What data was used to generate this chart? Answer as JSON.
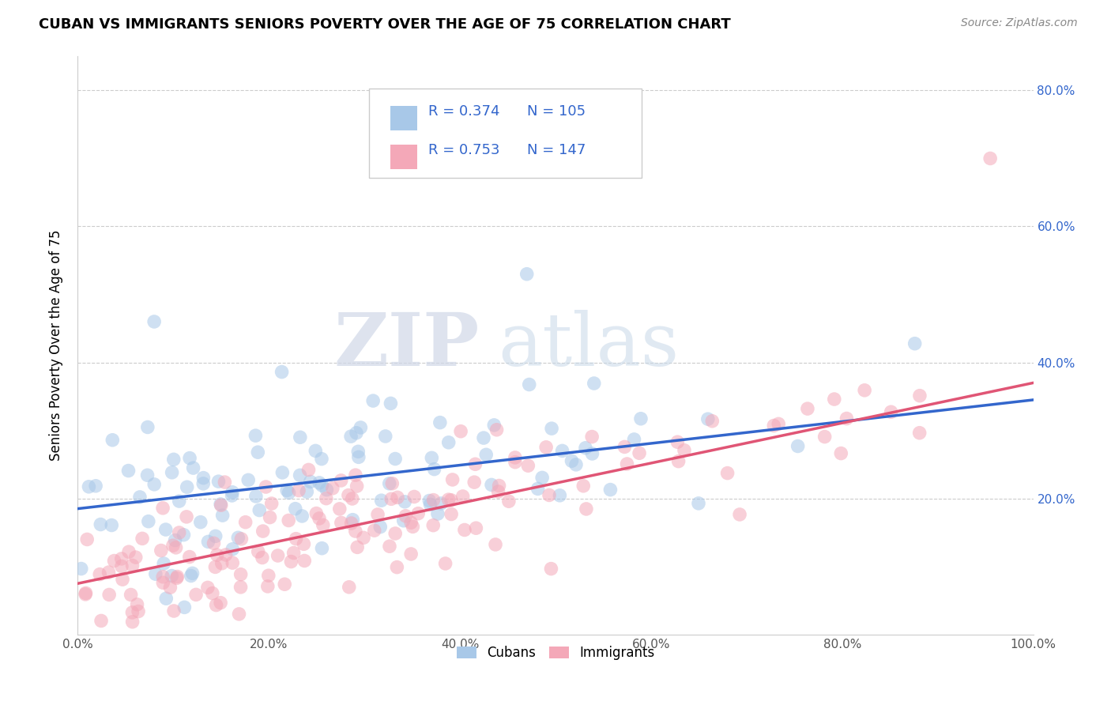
{
  "title": "CUBAN VS IMMIGRANTS SENIORS POVERTY OVER THE AGE OF 75 CORRELATION CHART",
  "source": "Source: ZipAtlas.com",
  "ylabel": "Seniors Poverty Over the Age of 75",
  "cubans_R": 0.374,
  "cubans_N": 105,
  "immigrants_R": 0.753,
  "immigrants_N": 147,
  "cubans_color": "#a8c8e8",
  "immigrants_color": "#f4a8b8",
  "cubans_line_color": "#3366cc",
  "immigrants_line_color": "#e05575",
  "legend_label_cubans": "Cubans",
  "legend_label_immigrants": "Immigrants",
  "watermark_zip": "ZIP",
  "watermark_atlas": "atlas",
  "background_color": "#ffffff",
  "xlim": [
    0.0,
    1.0
  ],
  "ylim": [
    0.0,
    0.85
  ],
  "cubans_line_x0": 0.0,
  "cubans_line_y0": 0.185,
  "cubans_line_x1": 1.0,
  "cubans_line_y1": 0.345,
  "immigrants_line_x0": 0.0,
  "immigrants_line_y0": 0.075,
  "immigrants_line_x1": 1.0,
  "immigrants_line_y1": 0.37
}
